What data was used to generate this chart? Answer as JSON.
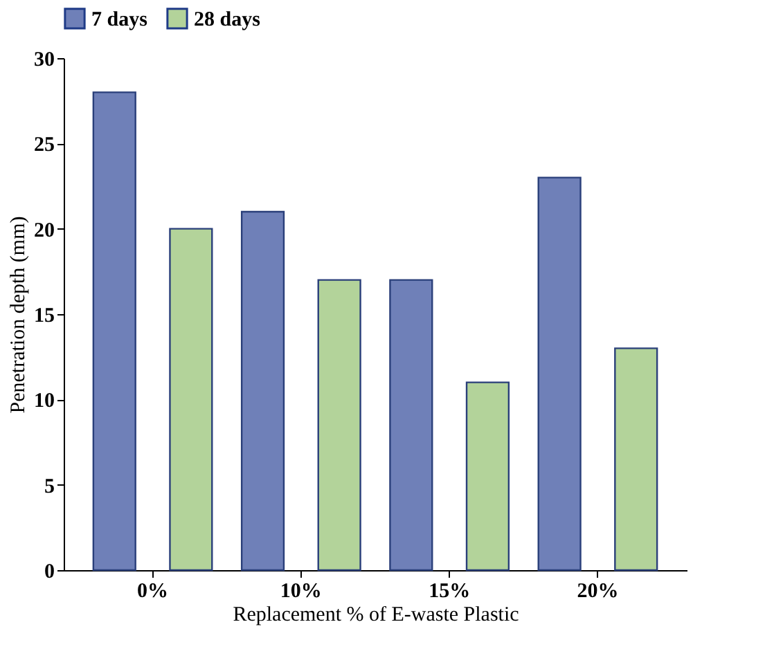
{
  "chart_data": {
    "type": "bar",
    "xlabel": "Replacement % of E-waste Plastic",
    "ylabel": "Penetration depth (mm)",
    "categories": [
      "0%",
      "10%",
      "15%",
      "20%"
    ],
    "series": [
      {
        "name": "7 days",
        "color": "#6f80b8",
        "values": [
          28,
          21,
          17,
          23
        ]
      },
      {
        "name": "28 days",
        "color": "#b3d39a",
        "values": [
          20,
          17,
          11,
          13
        ]
      }
    ],
    "ylim": [
      0,
      30
    ],
    "yticks": [
      0,
      5,
      10,
      15,
      20,
      25,
      30
    ],
    "grid": false,
    "legend": "top"
  }
}
